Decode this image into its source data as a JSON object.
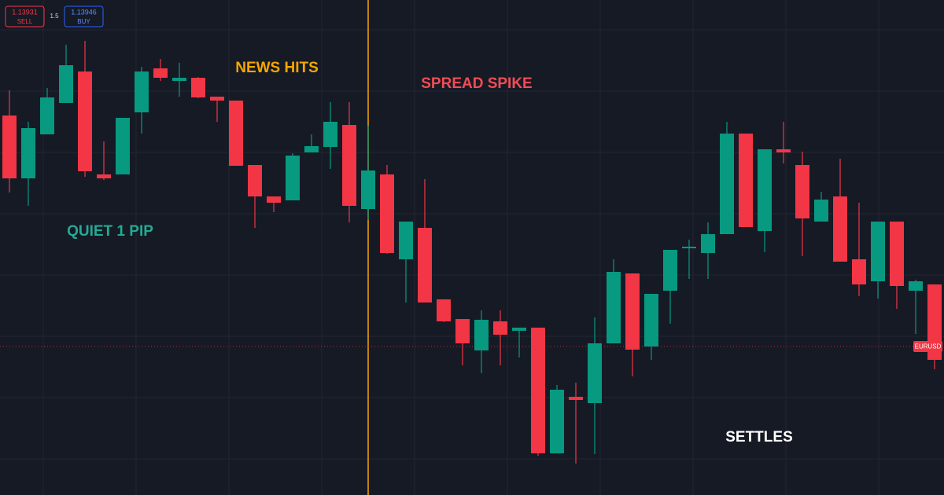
{
  "trade_panel": {
    "sell_price": "1.13931",
    "sell_label": "SELL",
    "spread": 1.5,
    "buy_price": "1.13946",
    "buy_label": "BUY"
  },
  "chart_data": {
    "type": "candlestick",
    "symbol_tag": "EURUSD",
    "up_color": "#089981",
    "down_color": "#f23645",
    "event_line_color": "#f7a600",
    "ylim": [
      1.13741,
      1.14371
    ],
    "price_line": 1.1393,
    "annotations": [
      {
        "text": "NEWS HITS",
        "color": "#f7a600"
      },
      {
        "text": "SPREAD SPIKE",
        "color": "#f24c55"
      },
      {
        "text": "QUIET 1 PIP",
        "color": "#22ab94"
      },
      {
        "text": "SETTLES",
        "color": "#ffffff"
      }
    ],
    "open": [
      1.14224,
      1.14144,
      1.142,
      1.1424,
      1.1428,
      1.14149,
      1.14149,
      1.14228,
      1.14284,
      1.14268,
      1.14272,
      1.14248,
      1.14243,
      1.14161,
      1.14121,
      1.14116,
      1.14177,
      1.14184,
      1.14212,
      1.14105,
      1.14149,
      1.14041,
      1.14081,
      1.1399,
      1.13965,
      1.13925,
      1.13962,
      1.1395,
      1.13954,
      1.13794,
      1.13866,
      1.13858,
      1.13934,
      1.14023,
      1.1393,
      1.14001,
      1.14055,
      1.14049,
      1.14073,
      1.14201,
      1.14077,
      1.14181,
      1.14161,
      1.14089,
      1.14121,
      1.14041,
      1.14013,
      1.14089,
      1.14001,
      1.14009
    ],
    "high": [
      1.14256,
      1.14216,
      1.14259,
      1.14314,
      1.14319,
      1.14191,
      1.14221,
      1.14286,
      1.14296,
      1.14291,
      1.14273,
      1.14248,
      1.14243,
      1.14161,
      1.14121,
      1.14176,
      1.142,
      1.14241,
      1.14241,
      1.14211,
      1.14161,
      1.14089,
      1.14143,
      1.1399,
      1.13965,
      1.13976,
      1.13976,
      1.13954,
      1.13954,
      1.13881,
      1.13884,
      1.13967,
      1.14041,
      1.14023,
      1.13997,
      1.14053,
      1.14066,
      1.14088,
      1.14216,
      1.14201,
      1.14181,
      1.14216,
      1.14178,
      1.14127,
      1.14169,
      1.14113,
      1.14089,
      1.14089,
      1.14015,
      1.14009
    ],
    "low": [
      1.14126,
      1.14109,
      1.142,
      1.1424,
      1.14146,
      1.14142,
      1.14149,
      1.14201,
      1.14268,
      1.14248,
      1.14246,
      1.14216,
      1.1416,
      1.14081,
      1.14101,
      1.14116,
      1.14177,
      1.14156,
      1.14088,
      1.14091,
      1.14048,
      1.13986,
      1.13986,
      1.13961,
      1.13906,
      1.13896,
      1.13906,
      1.13916,
      1.13791,
      1.13794,
      1.13781,
      1.13793,
      1.13934,
      1.13892,
      1.13913,
      1.13959,
      1.14016,
      1.14016,
      1.14073,
      1.14082,
      1.1405,
      1.14163,
      1.14045,
      1.14089,
      1.14038,
      1.13994,
      1.13991,
      1.13978,
      1.13946,
      1.13901
    ],
    "close": [
      1.14144,
      1.14208,
      1.14247,
      1.14288,
      1.14153,
      1.14144,
      1.14221,
      1.1428,
      1.14272,
      1.14272,
      1.14247,
      1.14243,
      1.1416,
      1.14121,
      1.14113,
      1.14173,
      1.14185,
      1.14216,
      1.14109,
      1.14154,
      1.14049,
      1.14089,
      1.13986,
      1.13962,
      1.13934,
      1.13964,
      1.13945,
      1.13954,
      1.13794,
      1.13875,
      1.13862,
      1.13934,
      1.14025,
      1.13926,
      1.13997,
      1.14053,
      1.14057,
      1.14073,
      1.14201,
      1.14082,
      1.14181,
      1.14177,
      1.14093,
      1.14117,
      1.14038,
      1.14009,
      1.14089,
      1.14007,
      1.14013,
      1.13913
    ]
  }
}
